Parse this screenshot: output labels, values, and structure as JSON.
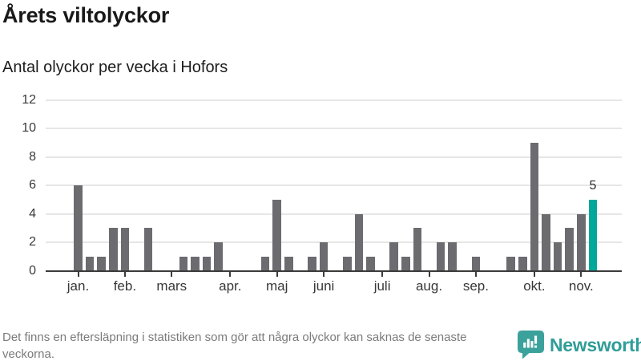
{
  "header": {
    "title": "Årets viltolyckor",
    "subtitle": "Antal olyckor per vecka i Hofors"
  },
  "chart_data": {
    "type": "bar",
    "title": "Årets viltolyckor",
    "subtitle": "Antal olyckor per vecka i Hofors",
    "x_unit": "vecka (week of year)",
    "ylabel": "",
    "xlabel": "",
    "ylim": [
      0,
      12
    ],
    "y_ticks": [
      0,
      2,
      4,
      6,
      8,
      10,
      12
    ],
    "grid": "horizontal",
    "values_by_week": [
      6,
      1,
      1,
      3,
      3,
      0,
      3,
      0,
      0,
      1,
      1,
      1,
      2,
      0,
      0,
      0,
      1,
      5,
      1,
      0,
      1,
      2,
      0,
      1,
      4,
      1,
      0,
      2,
      1,
      3,
      0,
      2,
      2,
      0,
      1,
      0,
      0,
      1,
      1,
      9,
      4,
      2,
      3,
      4,
      5
    ],
    "month_ticks": [
      {
        "label": "jan.",
        "week": 1
      },
      {
        "label": "feb.",
        "week": 5
      },
      {
        "label": "mars",
        "week": 9
      },
      {
        "label": "apr.",
        "week": 14
      },
      {
        "label": "maj",
        "week": 18
      },
      {
        "label": "juni",
        "week": 22
      },
      {
        "label": "juli",
        "week": 27
      },
      {
        "label": "aug.",
        "week": 31
      },
      {
        "label": "sep.",
        "week": 35
      },
      {
        "label": "okt.",
        "week": 40
      },
      {
        "label": "nov.",
        "week": 44
      }
    ],
    "highlight": {
      "week": 45,
      "value": 5,
      "label": "5"
    },
    "colors": {
      "bar": "#6c6b70",
      "highlight_bar": "#00a79b",
      "gridline": "#e6e6e6",
      "axis": "#3b3b3b",
      "axis_text": "#3a3a3a"
    }
  },
  "footer": {
    "note": "Det finns en eftersläpning i statistiken som gör att några olyckor kan saknas de senaste veckorna.",
    "brand": "Newsworthy"
  }
}
